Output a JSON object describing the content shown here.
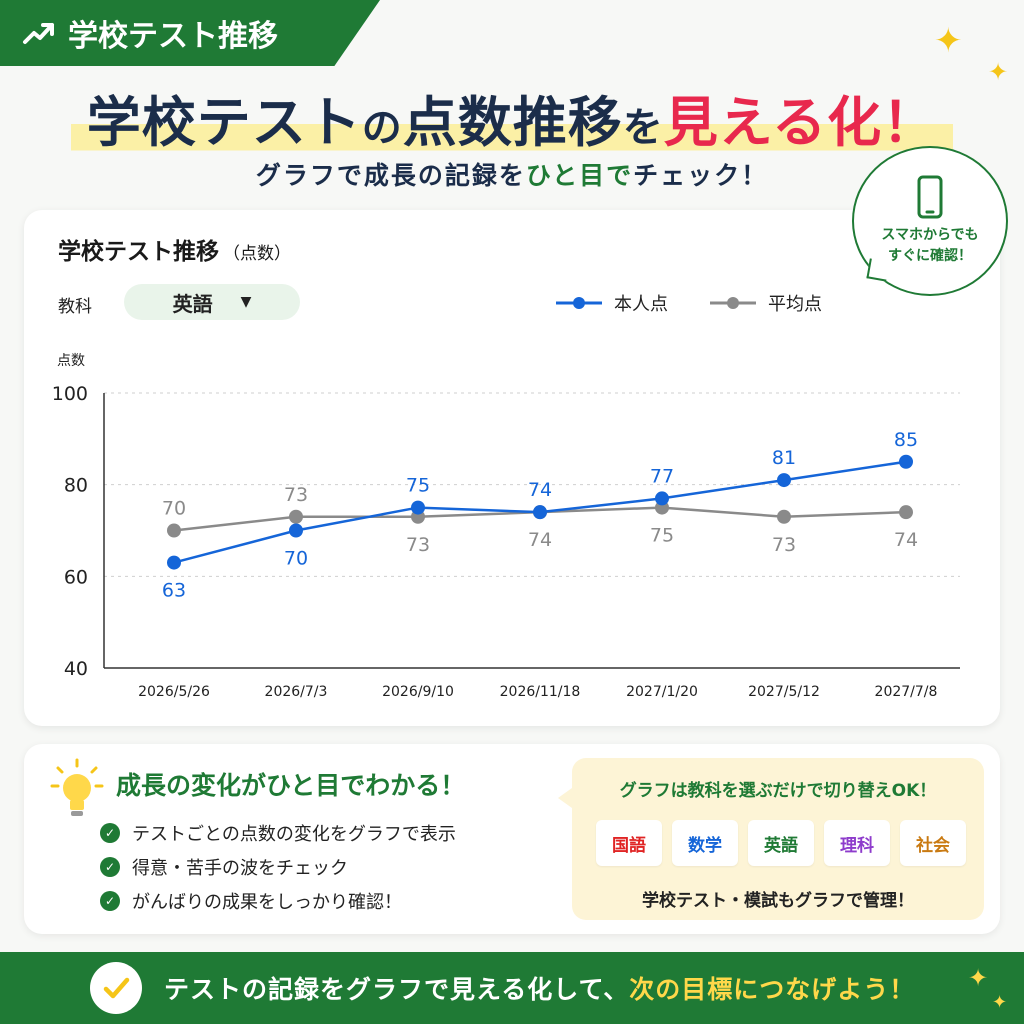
{
  "corner_tag": {
    "label": "学校テスト推移",
    "icon": "trend-up-icon"
  },
  "headline": {
    "part1": "学校テスト",
    "part2": "の",
    "part3": "点数推移",
    "part4": "を",
    "part5": "見える化！"
  },
  "subhead": {
    "part1": "グラフで成長の記録を",
    "part2": "ひと目で",
    "part3": "チェック！"
  },
  "bubble": {
    "line1": "スマホからでも",
    "line2": "すぐに確認！",
    "icon": "smartphone-icon"
  },
  "chart_card": {
    "title": "学校テスト推移",
    "title_unit": "（点数）",
    "subject_label": "教科",
    "subject_selected": "英語",
    "legend": {
      "self": "本人点",
      "average": "平均点"
    }
  },
  "chart_data": {
    "type": "line",
    "ylabel": "点数",
    "ylim": [
      40,
      100
    ],
    "yticks": [
      100,
      80,
      60,
      40
    ],
    "grid": true,
    "legend_placement": "top-right",
    "categories": [
      "2026/5/26",
      "2026/7/3",
      "2026/9/10",
      "2026/11/18",
      "2027/1/20",
      "2027/5/12",
      "2027/7/8"
    ],
    "series": [
      {
        "name": "本人点",
        "color": "#1565d8",
        "values": [
          63,
          70,
          75,
          74,
          77,
          81,
          85
        ]
      },
      {
        "name": "平均点",
        "color": "#8a8a8a",
        "values": [
          70,
          73,
          73,
          74,
          75,
          73,
          74
        ]
      }
    ]
  },
  "panel": {
    "heading": "成長の変化がひと目でわかる！",
    "checks": [
      "テストごとの点数の変化をグラフで表示",
      "得意・苦手の波をチェック",
      "がんばりの成果をしっかり確認！"
    ],
    "switch_title": "グラフは教科を選ぶだけで切り替えOK！",
    "subjects": [
      {
        "label": "国語",
        "color": "#e02424"
      },
      {
        "label": "数学",
        "color": "#1565d8"
      },
      {
        "label": "英語",
        "color": "#1f7a35"
      },
      {
        "label": "理科",
        "color": "#8e3ccc"
      },
      {
        "label": "社会",
        "color": "#c97a12"
      }
    ],
    "switch_note": "学校テスト・模試もグラフで管理！"
  },
  "footer": {
    "part1": "テストの記録をグラフで見える化して、",
    "part2": "次の目標につなげよう！"
  },
  "colors": {
    "brand_green": "#1f7a35",
    "accent_red": "#e8284d",
    "self_blue": "#1565d8",
    "average_gray": "#8a8a8a"
  }
}
